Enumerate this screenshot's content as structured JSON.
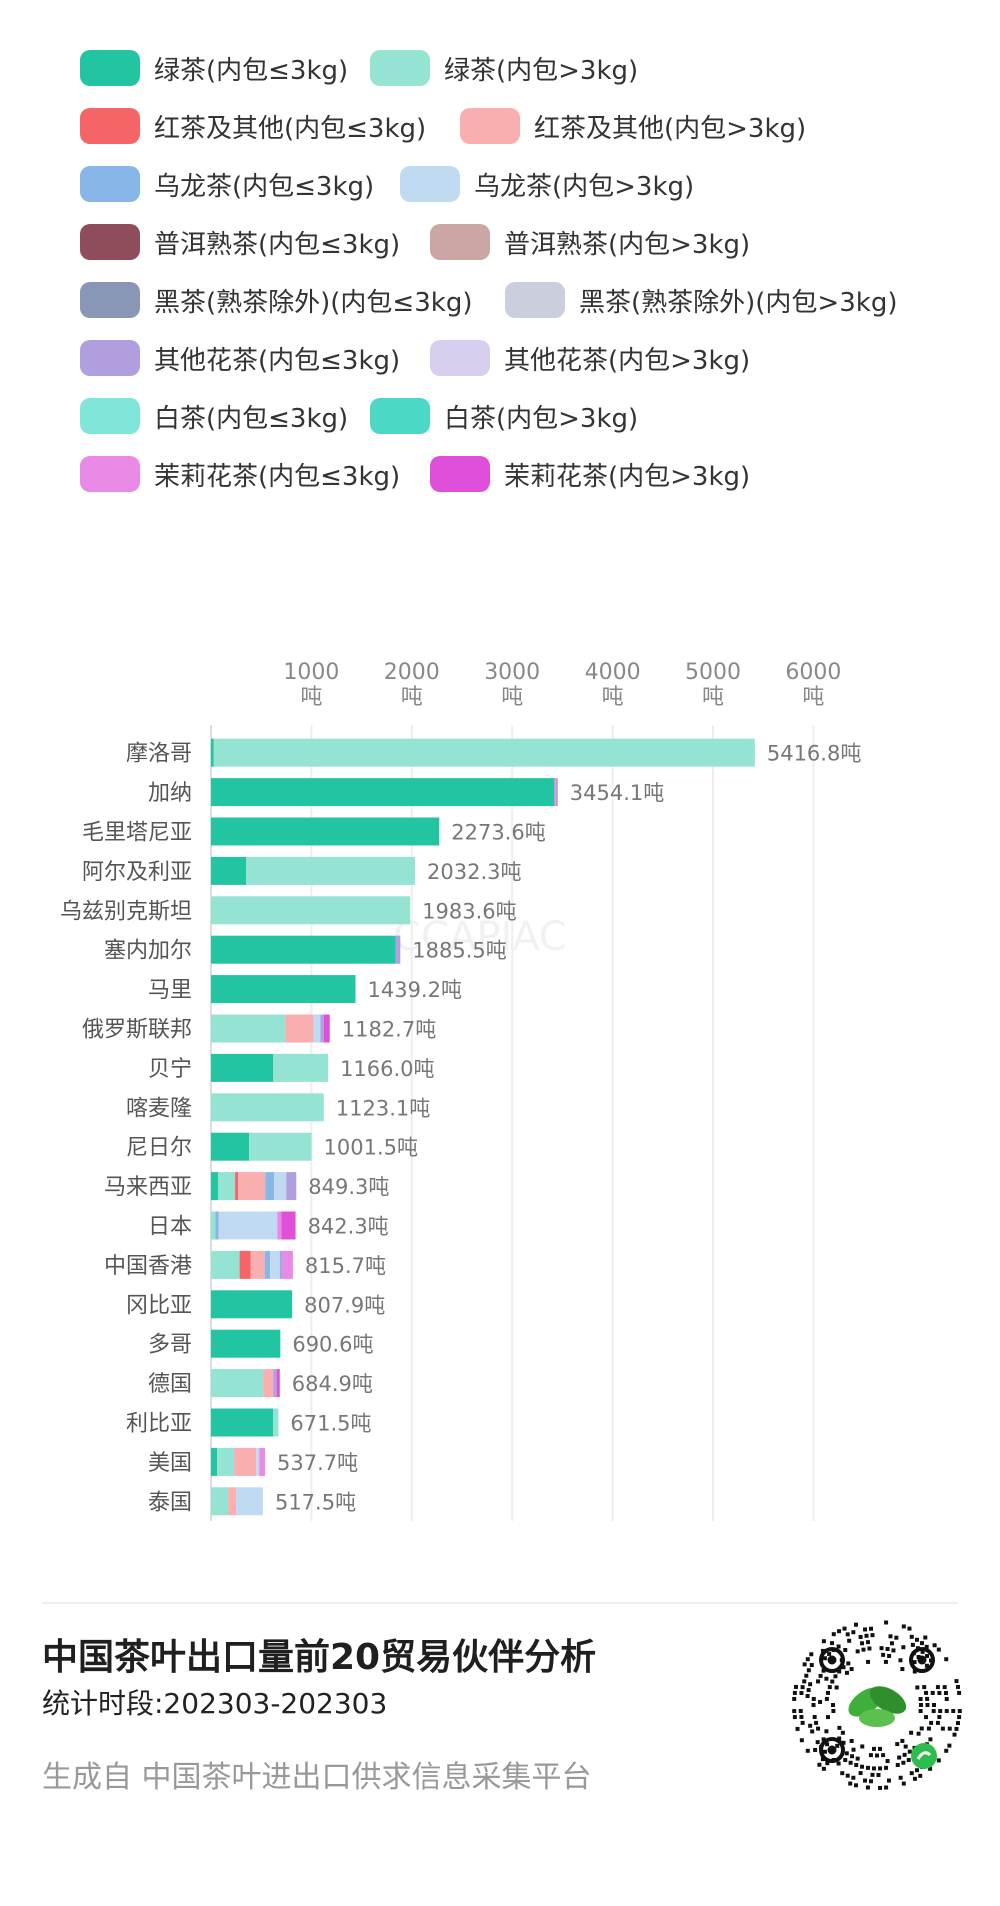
{
  "legend": [
    {
      "label": "绿茶(内包≤3kg)",
      "color": "#23C4A2"
    },
    {
      "label": "绿茶(内包>3kg)",
      "color": "#95E3D2"
    },
    {
      "label": "红茶及其他(内包≤3kg)",
      "color": "#F56466"
    },
    {
      "label": "红茶及其他(内包>3kg)",
      "color": "#F9AEAF"
    },
    {
      "label": "乌龙茶(内包≤3kg)",
      "color": "#88B6E7"
    },
    {
      "label": "乌龙茶(内包>3kg)",
      "color": "#C0DAF2"
    },
    {
      "label": "普洱熟茶(内包≤3kg)",
      "color": "#8F4C5A"
    },
    {
      "label": "普洱熟茶(内包>3kg)",
      "color": "#CBA6A4"
    },
    {
      "label": "黑茶(熟茶除外)(内包≤3kg)",
      "color": "#8A96B5"
    },
    {
      "label": "黑茶(熟茶除外)(内包>3kg)",
      "color": "#CBCEDC"
    },
    {
      "label": "其他花茶(内包≤3kg)",
      "color": "#B09EDF"
    },
    {
      "label": "其他花茶(内包>3kg)",
      "color": "#D8CFEF"
    },
    {
      "label": "白茶(内包≤3kg)",
      "color": "#80E6D9"
    },
    {
      "label": "白茶(内包>3kg)",
      "color": "#4BD9C6"
    },
    {
      "label": "茉莉花茶(内包≤3kg)",
      "color": "#E98AE6"
    },
    {
      "label": "茉莉花茶(内包>3kg)",
      "color": "#E04FDA"
    }
  ],
  "chart_data": {
    "type": "bar",
    "orientation": "horizontal",
    "stacked": true,
    "xlim": [
      0,
      6500
    ],
    "ticks": [
      1000,
      2000,
      3000,
      4000,
      5000,
      6000
    ],
    "tick_labels": [
      [
        "1000",
        "吨"
      ],
      [
        "2000",
        "吨"
      ],
      [
        "3000",
        "吨"
      ],
      [
        "4000",
        "吨"
      ],
      [
        "5000",
        "吨"
      ],
      [
        "6000",
        "吨"
      ]
    ],
    "grid": true,
    "categories": [
      "摩洛哥",
      "加纳",
      "毛里塔尼亚",
      "阿尔及利亚",
      "乌兹别克斯坦",
      "塞内加尔",
      "马里",
      "俄罗斯联邦",
      "贝宁",
      "喀麦隆",
      "尼日尔",
      "马来西亚",
      "日本",
      "中国香港",
      "冈比亚",
      "多哥",
      "德国",
      "利比亚",
      "美国",
      "泰国"
    ],
    "totals": [
      5416.8,
      3454.1,
      2273.6,
      2032.3,
      1983.6,
      1885.5,
      1439.2,
      1182.7,
      1166.0,
      1123.1,
      1001.5,
      849.3,
      842.3,
      815.7,
      807.9,
      690.6,
      684.9,
      671.5,
      537.7,
      517.5
    ],
    "total_labels": [
      "5416.8吨",
      "3454.1吨",
      "2273.6吨",
      "2032.3吨",
      "1983.6吨",
      "1885.5吨",
      "1439.2吨",
      "1182.7吨",
      "1166.0吨",
      "1123.1吨",
      "1001.5吨",
      "849.3吨",
      "842.3吨",
      "815.7吨",
      "807.9吨",
      "690.6吨",
      "684.9吨",
      "671.5吨",
      "537.7吨",
      "517.5吨"
    ],
    "segments": [
      [
        [
          0,
          25
        ],
        [
          1,
          5391.8
        ]
      ],
      [
        [
          0,
          3420
        ],
        [
          14,
          14
        ],
        [
          10,
          20.1
        ]
      ],
      [
        [
          0,
          2273.6
        ]
      ],
      [
        [
          0,
          350
        ],
        [
          1,
          1682.3
        ]
      ],
      [
        [
          1,
          1983.6
        ]
      ],
      [
        [
          0,
          1840
        ],
        [
          10,
          45.5
        ]
      ],
      [
        [
          0,
          1439.2
        ]
      ],
      [
        [
          1,
          740
        ],
        [
          3,
          280
        ],
        [
          5,
          70
        ],
        [
          10,
          35
        ],
        [
          15,
          57.7
        ]
      ],
      [
        [
          0,
          620
        ],
        [
          1,
          546
        ]
      ],
      [
        [
          1,
          1123.1
        ]
      ],
      [
        [
          0,
          380
        ],
        [
          1,
          621.5
        ]
      ],
      [
        [
          0,
          70
        ],
        [
          1,
          170
        ],
        [
          2,
          30
        ],
        [
          3,
          270
        ],
        [
          4,
          90
        ],
        [
          5,
          120
        ],
        [
          10,
          99.3
        ]
      ],
      [
        [
          1,
          45
        ],
        [
          4,
          30
        ],
        [
          5,
          585
        ],
        [
          14,
          40
        ],
        [
          15,
          142.3
        ]
      ],
      [
        [
          1,
          285
        ],
        [
          2,
          110
        ],
        [
          3,
          140
        ],
        [
          4,
          55
        ],
        [
          5,
          95
        ],
        [
          10,
          30
        ],
        [
          14,
          100.7
        ]
      ],
      [
        [
          0,
          807.9
        ]
      ],
      [
        [
          0,
          690.6
        ]
      ],
      [
        [
          1,
          520
        ],
        [
          3,
          100
        ],
        [
          10,
          35
        ],
        [
          15,
          29.9
        ]
      ],
      [
        [
          0,
          620
        ],
        [
          1,
          51.5
        ]
      ],
      [
        [
          0,
          60
        ],
        [
          1,
          170
        ],
        [
          3,
          220
        ],
        [
          5,
          30
        ],
        [
          14,
          57.7
        ]
      ],
      [
        [
          1,
          170
        ],
        [
          3,
          80
        ],
        [
          5,
          267.5
        ]
      ]
    ]
  },
  "footer": {
    "title": "中国茶叶出口量前20贸易伙伴分析",
    "period": "统计时段:202303-202303",
    "source": "生成自 中国茶叶进出口供求信息采集平台"
  }
}
